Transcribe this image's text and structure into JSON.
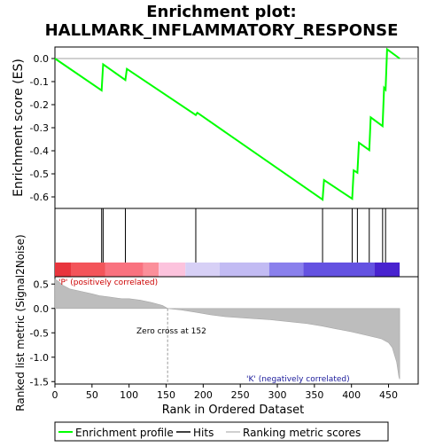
{
  "chart_data": {
    "type": "line",
    "title_line1": "Enrichment plot:",
    "title_line2": "HALLMARK_INFLAMMATORY_RESPONSE",
    "top_panel": {
      "ylabel": "Enrichment score (ES)",
      "ylim": [
        -0.65,
        0.05
      ],
      "yticks": [
        0.0,
        -0.1,
        -0.2,
        -0.3,
        -0.4,
        -0.5,
        -0.6
      ],
      "ytick_labels": [
        "0.0",
        "-0.1",
        "-0.2",
        "-0.3",
        "-0.4",
        "-0.5",
        "-0.6"
      ],
      "line_color": "#00ff00",
      "es_curve": {
        "x": [
          0,
          63,
          65,
          95,
          97,
          190,
          192,
          361,
          363,
          401,
          403,
          408,
          410,
          424,
          426,
          442,
          444,
          446,
          448,
          465
        ],
        "y": [
          0.0,
          -0.138,
          -0.025,
          -0.093,
          -0.045,
          -0.245,
          -0.235,
          -0.612,
          -0.527,
          -0.608,
          -0.485,
          -0.495,
          -0.365,
          -0.397,
          -0.255,
          -0.293,
          -0.127,
          -0.135,
          0.04,
          0.0
        ]
      }
    },
    "hits": {
      "positions": [
        63,
        65,
        95,
        190,
        361,
        401,
        408,
        424,
        442,
        446
      ]
    },
    "color_bar": {
      "segments": [
        {
          "start": 0,
          "end": 22,
          "color": "#e8353d"
        },
        {
          "start": 22,
          "end": 68,
          "color": "#f3545a"
        },
        {
          "start": 68,
          "end": 119,
          "color": "#f9727f"
        },
        {
          "start": 119,
          "end": 140,
          "color": "#fb8f9a"
        },
        {
          "start": 140,
          "end": 176,
          "color": "#fcc3dd"
        },
        {
          "start": 176,
          "end": 222,
          "color": "#d7d0f6"
        },
        {
          "start": 222,
          "end": 289,
          "color": "#c2bbf3"
        },
        {
          "start": 289,
          "end": 335,
          "color": "#8a80ec"
        },
        {
          "start": 335,
          "end": 431,
          "color": "#6452e1"
        },
        {
          "start": 431,
          "end": 465,
          "color": "#4822cf"
        }
      ]
    },
    "bottom_panel": {
      "ylabel": "Ranked list metric (Signal2Noise)",
      "ylim": [
        -1.55,
        0.65
      ],
      "yticks": [
        0.5,
        0.0,
        -0.5,
        -1.0,
        -1.5
      ],
      "ytick_labels": [
        "0.5",
        "0.0",
        "-0.5",
        "-1.0",
        "-1.5"
      ],
      "metric_profile": {
        "x": [
          0,
          5,
          10,
          20,
          35,
          50,
          60,
          75,
          90,
          100,
          115,
          130,
          145,
          152,
          170,
          190,
          210,
          230,
          260,
          290,
          320,
          340,
          360,
          380,
          400,
          420,
          440,
          450,
          455,
          458,
          461,
          464,
          465
        ],
        "y": [
          0.6,
          0.55,
          0.48,
          0.4,
          0.35,
          0.3,
          0.26,
          0.23,
          0.2,
          0.2,
          0.17,
          0.12,
          0.06,
          0.0,
          -0.03,
          -0.08,
          -0.13,
          -0.17,
          -0.2,
          -0.23,
          -0.28,
          -0.31,
          -0.36,
          -0.42,
          -0.48,
          -0.55,
          -0.62,
          -0.7,
          -0.8,
          -0.95,
          -1.1,
          -1.4,
          -1.45
        ]
      },
      "annotation_pos": "'P' (positively correlated)",
      "annotation_neg": "'K' (negatively correlated)",
      "zero_cross_label": "Zero cross at 152",
      "zero_cross": 152
    },
    "xaxis": {
      "xlabel": "Rank in Ordered Dataset",
      "xlim": [
        0,
        490
      ],
      "xticks": [
        0,
        50,
        100,
        150,
        200,
        250,
        300,
        350,
        400,
        450
      ],
      "xtick_labels": [
        "0",
        "50",
        "100",
        "150",
        "200",
        "250",
        "300",
        "350",
        "400",
        "450"
      ]
    },
    "legend": {
      "placement": "bottom",
      "items": [
        {
          "label": "Enrichment profile",
          "color": "#00ff00",
          "kind": "line"
        },
        {
          "label": "Hits",
          "color": "#000000",
          "kind": "line"
        },
        {
          "label": "Ranking metric scores",
          "color": "#c0c0c0",
          "kind": "line"
        }
      ]
    }
  }
}
